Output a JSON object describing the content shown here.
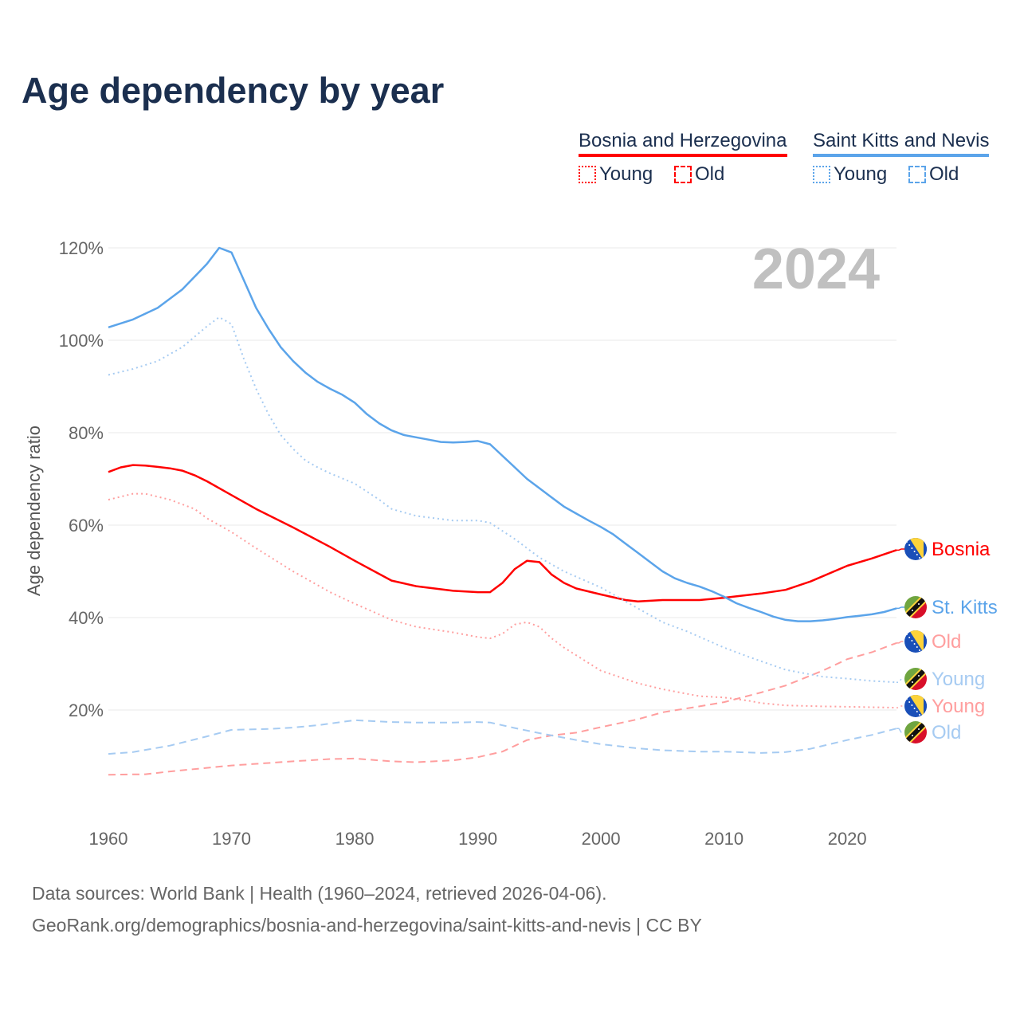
{
  "title": "Age dependency by year",
  "legend": {
    "countries": [
      {
        "name": "Bosnia and Herzegovina",
        "color": "#ff0000",
        "young_label": "Young",
        "old_label": "Old"
      },
      {
        "name": "Saint Kitts and Nevis",
        "color": "#5ba4ea",
        "young_label": "Young",
        "old_label": "Old"
      }
    ]
  },
  "year_overlay": "2024",
  "footer": {
    "line1": "Data sources: World Bank | Health (1960–2024, retrieved 2026-04-06).",
    "line2": "GeoRank.org/demographics/bosnia-and-herzegovina/saint-kitts-and-nevis | CC BY"
  },
  "chart_data": {
    "type": "line",
    "title": "Age dependency by year",
    "xlabel": "",
    "ylabel": "Age dependency ratio",
    "xlim": [
      1960,
      2024
    ],
    "ylim": [
      0,
      120
    ],
    "x_ticks": [
      "1960",
      "1970",
      "1980",
      "1990",
      "2000",
      "2010",
      "2020"
    ],
    "y_ticks": [
      "20%",
      "40%",
      "60%",
      "80%",
      "100%",
      "120%"
    ],
    "grid": true,
    "series": [
      {
        "name": "Bosnia and Herzegovina – Total",
        "end_label": "Bosnia",
        "color": "#ff0000",
        "style": "solid",
        "flag": "bosnia",
        "x": [
          1960,
          1961,
          1962,
          1963,
          1964,
          1965,
          1966,
          1967,
          1968,
          1970,
          1972,
          1975,
          1978,
          1980,
          1983,
          1985,
          1988,
          1990,
          1991,
          1992,
          1993,
          1994,
          1995,
          1996,
          1997,
          1998,
          2000,
          2002,
          2003,
          2005,
          2008,
          2010,
          2013,
          2015,
          2017,
          2020,
          2022,
          2024
        ],
        "y": [
          71.5,
          72.5,
          73,
          72.9,
          72.6,
          72.3,
          71.8,
          70.8,
          69.5,
          66.5,
          63.5,
          59.5,
          55.3,
          52.3,
          48,
          46.8,
          45.8,
          45.5,
          45.5,
          47.5,
          50.5,
          52.3,
          52,
          49.3,
          47.5,
          46.3,
          45,
          43.8,
          43.5,
          43.8,
          43.8,
          44.3,
          45.2,
          46,
          47.8,
          51.2,
          52.8,
          54.6
        ]
      },
      {
        "name": "Saint Kitts and Nevis – Total",
        "end_label": "St. Kitts",
        "color": "#5ba4ea",
        "style": "solid",
        "flag": "stkitts",
        "x": [
          1960,
          1962,
          1964,
          1966,
          1968,
          1969,
          1970,
          1971,
          1972,
          1973,
          1974,
          1975,
          1976,
          1977,
          1978,
          1979,
          1980,
          1981,
          1982,
          1983,
          1984,
          1985,
          1986,
          1987,
          1988,
          1989,
          1990,
          1991,
          1992,
          1993,
          1994,
          1995,
          1996,
          1997,
          1998,
          1999,
          2000,
          2001,
          2002,
          2003,
          2004,
          2005,
          2006,
          2007,
          2008,
          2009,
          2010,
          2011,
          2012,
          2013,
          2014,
          2015,
          2016,
          2017,
          2018,
          2019,
          2020,
          2021,
          2022,
          2023,
          2024
        ],
        "y": [
          102.8,
          104.5,
          107,
          111,
          116.5,
          120,
          119,
          113,
          107,
          102.5,
          98.5,
          95.5,
          93,
          91,
          89.5,
          88.2,
          86.5,
          84,
          82,
          80.5,
          79.5,
          79,
          78.5,
          78,
          77.9,
          78,
          78.2,
          77.5,
          75,
          72.5,
          70,
          68,
          66,
          64,
          62.5,
          61,
          59.6,
          58,
          56,
          54,
          52,
          50,
          48.5,
          47.5,
          46.7,
          45.7,
          44.5,
          43.1,
          42.1,
          41.2,
          40.2,
          39.5,
          39.2,
          39.2,
          39.4,
          39.7,
          40.1,
          40.4,
          40.7,
          41.2,
          42
        ]
      },
      {
        "name": "Bosnia and Herzegovina – Old",
        "end_label": "Old",
        "color": "#ff9e9e",
        "style": "dashed",
        "flag": "bosnia",
        "x": [
          1960,
          1963,
          1965,
          1970,
          1975,
          1978,
          1980,
          1983,
          1985,
          1988,
          1990,
          1992,
          1994,
          1996,
          1998,
          2000,
          2003,
          2005,
          2008,
          2010,
          2013,
          2015,
          2018,
          2020,
          2022,
          2024
        ],
        "y": [
          6,
          6.1,
          6.7,
          8,
          8.9,
          9.4,
          9.5,
          8.9,
          8.7,
          9.1,
          9.8,
          11,
          13.5,
          14.5,
          15.1,
          16.3,
          18,
          19.5,
          20.8,
          21.7,
          23.8,
          25.3,
          28.5,
          31,
          32.5,
          34.5
        ]
      },
      {
        "name": "Saint Kitts and Nevis – Young",
        "end_label": "Young",
        "color": "#a6cbf2",
        "style": "dotted",
        "flag": "stkitts",
        "x": [
          1960,
          1962,
          1964,
          1966,
          1968,
          1969,
          1970,
          1971,
          1972,
          1973,
          1974,
          1975,
          1976,
          1977,
          1978,
          1980,
          1982,
          1983,
          1985,
          1988,
          1990,
          1991,
          1993,
          1995,
          1997,
          2000,
          2002,
          2005,
          2007,
          2010,
          2012,
          2015,
          2018,
          2020,
          2022,
          2024
        ],
        "y": [
          92.5,
          93.8,
          95.5,
          98.5,
          103,
          105,
          103.5,
          96,
          89.5,
          84,
          79.5,
          76.5,
          74,
          72.5,
          71.2,
          69,
          65.5,
          63.5,
          62,
          61,
          61,
          60.5,
          57,
          53,
          50,
          46.5,
          43.5,
          39,
          37,
          33.5,
          31.5,
          28.7,
          27.2,
          26.8,
          26.3,
          26
        ]
      },
      {
        "name": "Bosnia and Herzegovina – Young",
        "end_label": "Young",
        "color": "#ff9e9e",
        "style": "dotted",
        "flag": "bosnia",
        "x": [
          1960,
          1962,
          1963,
          1965,
          1967,
          1968,
          1970,
          1972,
          1975,
          1978,
          1980,
          1983,
          1985,
          1988,
          1990,
          1991,
          1992,
          1993,
          1994,
          1995,
          1996,
          1997,
          2000,
          2003,
          2005,
          2008,
          2010,
          2012,
          2013,
          2015,
          2018,
          2020,
          2024
        ],
        "y": [
          65.5,
          66.8,
          66.8,
          65.5,
          63.5,
          61.5,
          58.5,
          55,
          50,
          45.5,
          43,
          39.5,
          38,
          36.8,
          35.8,
          35.5,
          36.5,
          38.5,
          39,
          38,
          35.5,
          33.5,
          28.5,
          25.8,
          24.5,
          23,
          22.7,
          22,
          21.5,
          21,
          20.8,
          20.7,
          20.5
        ]
      },
      {
        "name": "Saint Kitts and Nevis – Old",
        "end_label": "Old",
        "color": "#a6cbf2",
        "style": "dashed",
        "flag": "stkitts",
        "x": [
          1960,
          1962,
          1965,
          1968,
          1970,
          1973,
          1975,
          1977,
          1980,
          1983,
          1985,
          1988,
          1990,
          1991,
          1993,
          1995,
          1998,
          2000,
          2003,
          2005,
          2008,
          2010,
          2013,
          2015,
          2017,
          2020,
          2022,
          2024
        ],
        "y": [
          10.5,
          10.9,
          12.3,
          14.3,
          15.7,
          15.9,
          16.2,
          16.7,
          17.8,
          17.4,
          17.3,
          17.3,
          17.4,
          17.3,
          16.1,
          15,
          13.5,
          12.6,
          11.7,
          11.3,
          11,
          11,
          10.7,
          10.9,
          11.6,
          13.5,
          14.6,
          16
        ]
      }
    ]
  }
}
